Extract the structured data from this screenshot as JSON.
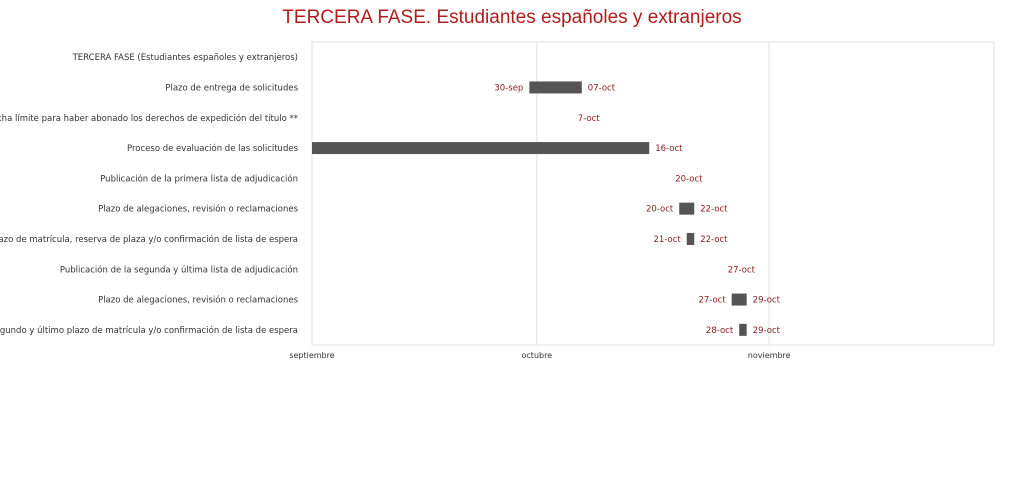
{
  "chart_data": {
    "type": "bar",
    "title": "TERCERA FASE. Estudiantes españoles y extranjeros",
    "x_axis": {
      "ticks": [
        "septiembre",
        "octubre",
        "noviembre"
      ],
      "tick_dates": [
        "2023-09-01",
        "2023-10-01",
        "2023-11-01"
      ],
      "range": [
        "2023-09-01",
        "2023-12-01"
      ]
    },
    "grid": true,
    "colors": {
      "bar": "#555555",
      "label": "#8b1a1a",
      "title": "#b01d1d",
      "grid": "#e0e0e0"
    },
    "tasks": [
      {
        "name": "TERCERA FASE (Estudiantes españoles y extranjeros)",
        "start": null,
        "end": null,
        "start_label": "",
        "end_label": ""
      },
      {
        "name": "Plazo de entrega de solicitudes",
        "start": "2023-09-30",
        "end": "2023-10-07",
        "start_label": "30-sep",
        "end_label": "07-oct"
      },
      {
        "name": "Fecha límite para haber abonado los derechos de expedición del título **",
        "start": "2023-10-07",
        "end": "2023-10-07",
        "start_label": "",
        "end_label": "7-oct"
      },
      {
        "name": "Proceso de evaluación de las solicitudes",
        "start": "2023-09-01",
        "end": "2023-10-16",
        "start_label": "",
        "end_label": "16-oct"
      },
      {
        "name": "Publicación de la primera lista de adjudicación",
        "start": "2023-10-20",
        "end": "2023-10-20",
        "start_label": "",
        "end_label": "20-oct"
      },
      {
        "name": "Plazo de alegaciones, revisión o reclamaciones",
        "start": "2023-10-20",
        "end": "2023-10-22",
        "start_label": "20-oct",
        "end_label": "22-oct"
      },
      {
        "name": "Plazo de matrícula, reserva de plaza y/o confirmación de lista de espera",
        "start": "2023-10-21",
        "end": "2023-10-22",
        "start_label": "21-oct",
        "end_label": "22-oct"
      },
      {
        "name": "Publicación de la segunda y última lista de adjudicación",
        "start": "2023-10-27",
        "end": "2023-10-27",
        "start_label": "",
        "end_label": "27-oct"
      },
      {
        "name": "Plazo de alegaciones, revisión o reclamaciones",
        "start": "2023-10-27",
        "end": "2023-10-29",
        "start_label": "27-oct",
        "end_label": "29-oct"
      },
      {
        "name": "Segundo y último plazo de matrícula y/o confirmación de lista de espera",
        "start": "2023-10-28",
        "end": "2023-10-29",
        "start_label": "28-oct",
        "end_label": "29-oct"
      }
    ]
  }
}
